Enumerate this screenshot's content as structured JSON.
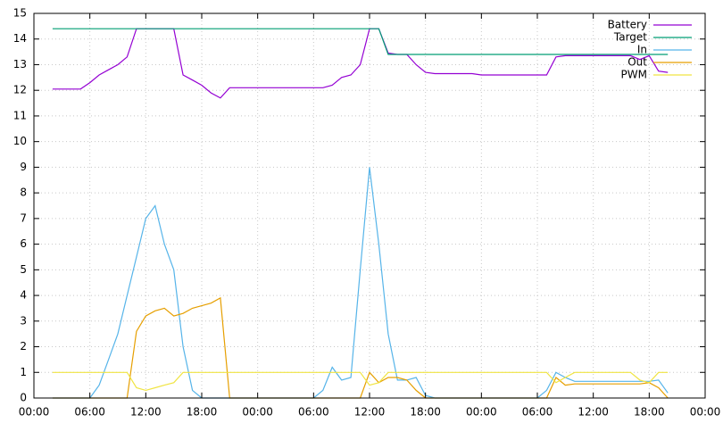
{
  "chart_data": {
    "type": "line",
    "x": [
      2,
      3,
      4,
      5,
      6,
      7,
      8,
      9,
      10,
      11,
      12,
      13,
      14,
      15,
      16,
      17,
      18,
      19,
      20,
      21,
      22,
      23,
      24,
      25,
      26,
      27,
      28,
      29,
      30,
      31,
      32,
      33,
      34,
      35,
      36,
      37,
      38,
      39,
      40,
      41,
      42,
      43,
      44,
      45,
      46,
      47,
      48,
      49,
      50,
      51,
      52,
      53,
      54,
      55,
      56,
      57,
      58,
      59,
      60,
      61,
      62,
      63,
      64,
      65,
      66,
      67,
      68
    ],
    "series": [
      {
        "name": "Battery",
        "color": "#9400d3",
        "values": [
          12.05,
          12.05,
          12.05,
          12.05,
          12.3,
          12.6,
          12.8,
          13.0,
          13.3,
          14.4,
          14.4,
          14.4,
          14.4,
          14.4,
          12.6,
          12.4,
          12.2,
          11.9,
          11.7,
          12.1,
          12.1,
          12.1,
          12.1,
          12.1,
          12.1,
          12.1,
          12.1,
          12.1,
          12.1,
          12.1,
          12.2,
          12.5,
          12.6,
          13.0,
          14.4,
          14.4,
          13.45,
          13.4,
          13.4,
          13.0,
          12.7,
          12.65,
          12.65,
          12.65,
          12.65,
          12.65,
          12.6,
          12.6,
          12.6,
          12.6,
          12.6,
          12.6,
          12.6,
          12.6,
          13.3,
          13.35,
          13.35,
          13.35,
          13.35,
          13.35,
          13.35,
          13.35,
          13.35,
          13.2,
          13.35,
          12.75,
          12.7
        ]
      },
      {
        "name": "Target",
        "color": "#009e73",
        "values": [
          14.4,
          14.4,
          14.4,
          14.4,
          14.4,
          14.4,
          14.4,
          14.4,
          14.4,
          14.4,
          14.4,
          14.4,
          14.4,
          14.4,
          14.4,
          14.4,
          14.4,
          14.4,
          14.4,
          14.4,
          14.4,
          14.4,
          14.4,
          14.4,
          14.4,
          14.4,
          14.4,
          14.4,
          14.4,
          14.4,
          14.4,
          14.4,
          14.4,
          14.4,
          14.4,
          14.4,
          13.4,
          13.4,
          13.4,
          13.4,
          13.4,
          13.4,
          13.4,
          13.4,
          13.4,
          13.4,
          13.4,
          13.4,
          13.4,
          13.4,
          13.4,
          13.4,
          13.4,
          13.4,
          13.4,
          13.4,
          13.4,
          13.4,
          13.4,
          13.4,
          13.4,
          13.4,
          13.4,
          13.4,
          13.4,
          13.4,
          13.4
        ]
      },
      {
        "name": "In",
        "color": "#56b4e9",
        "values": [
          0,
          0,
          0,
          0,
          0,
          0.5,
          1.5,
          2.5,
          4,
          5.5,
          7,
          7.5,
          6,
          5,
          2,
          0.3,
          0,
          0,
          0,
          0,
          0,
          0,
          0,
          0,
          0,
          0,
          0,
          0,
          0,
          0.3,
          1.2,
          0.7,
          0.8,
          5,
          9,
          6,
          2.5,
          0.7,
          0.7,
          0.8,
          0.1,
          0,
          0,
          0,
          0,
          0,
          0,
          0,
          0,
          0,
          0,
          0,
          0,
          0.3,
          1.0,
          0.8,
          0.65,
          0.65,
          0.65,
          0.65,
          0.65,
          0.65,
          0.65,
          0.65,
          0.65,
          0.7,
          0.2
        ]
      },
      {
        "name": "Out",
        "color": "#e69f00",
        "values": [
          0,
          0,
          0,
          0,
          0,
          0,
          0,
          0,
          0,
          2.6,
          3.2,
          3.4,
          3.5,
          3.2,
          3.3,
          3.5,
          3.6,
          3.7,
          3.9,
          0,
          0,
          0,
          0,
          0,
          0,
          0,
          0,
          0,
          0,
          0,
          0,
          0,
          0,
          0,
          1.0,
          0.6,
          0.8,
          0.8,
          0.7,
          0.3,
          0,
          0,
          0,
          0,
          0,
          0,
          0,
          0,
          0,
          0,
          0,
          0,
          0,
          0,
          0.8,
          0.5,
          0.55,
          0.55,
          0.55,
          0.55,
          0.55,
          0.55,
          0.55,
          0.55,
          0.6,
          0.4,
          0
        ]
      },
      {
        "name": "PWM",
        "color": "#f0e442",
        "values": [
          1,
          1,
          1,
          1,
          1,
          1,
          1,
          1,
          1,
          0.4,
          0.3,
          0.4,
          0.5,
          0.6,
          1,
          1,
          1,
          1,
          1,
          1,
          1,
          1,
          1,
          1,
          1,
          1,
          1,
          1,
          1,
          1,
          1,
          1,
          1,
          1,
          0.5,
          0.6,
          1,
          1,
          1,
          1,
          1,
          1,
          1,
          1,
          1,
          1,
          1,
          1,
          1,
          1,
          1,
          1,
          1,
          1,
          0.6,
          0.8,
          1,
          1,
          1,
          1,
          1,
          1,
          1,
          0.7,
          0.6,
          1,
          1
        ]
      }
    ],
    "xlim": [
      0,
      72
    ],
    "xticks": [
      {
        "value": 0,
        "label": "00:00"
      },
      {
        "value": 6,
        "label": "06:00"
      },
      {
        "value": 12,
        "label": "12:00"
      },
      {
        "value": 18,
        "label": "18:00"
      },
      {
        "value": 24,
        "label": "00:00"
      },
      {
        "value": 30,
        "label": "06:00"
      },
      {
        "value": 36,
        "label": "12:00"
      },
      {
        "value": 42,
        "label": "18:00"
      },
      {
        "value": 48,
        "label": "00:00"
      },
      {
        "value": 54,
        "label": "06:00"
      },
      {
        "value": 60,
        "label": "12:00"
      },
      {
        "value": 66,
        "label": "18:00"
      },
      {
        "value": 72,
        "label": "00:00"
      }
    ],
    "ylim": [
      0,
      15
    ],
    "yticks": [
      0,
      1,
      2,
      3,
      4,
      5,
      6,
      7,
      8,
      9,
      10,
      11,
      12,
      13,
      14,
      15
    ],
    "grid": true,
    "legend": "top-right"
  }
}
